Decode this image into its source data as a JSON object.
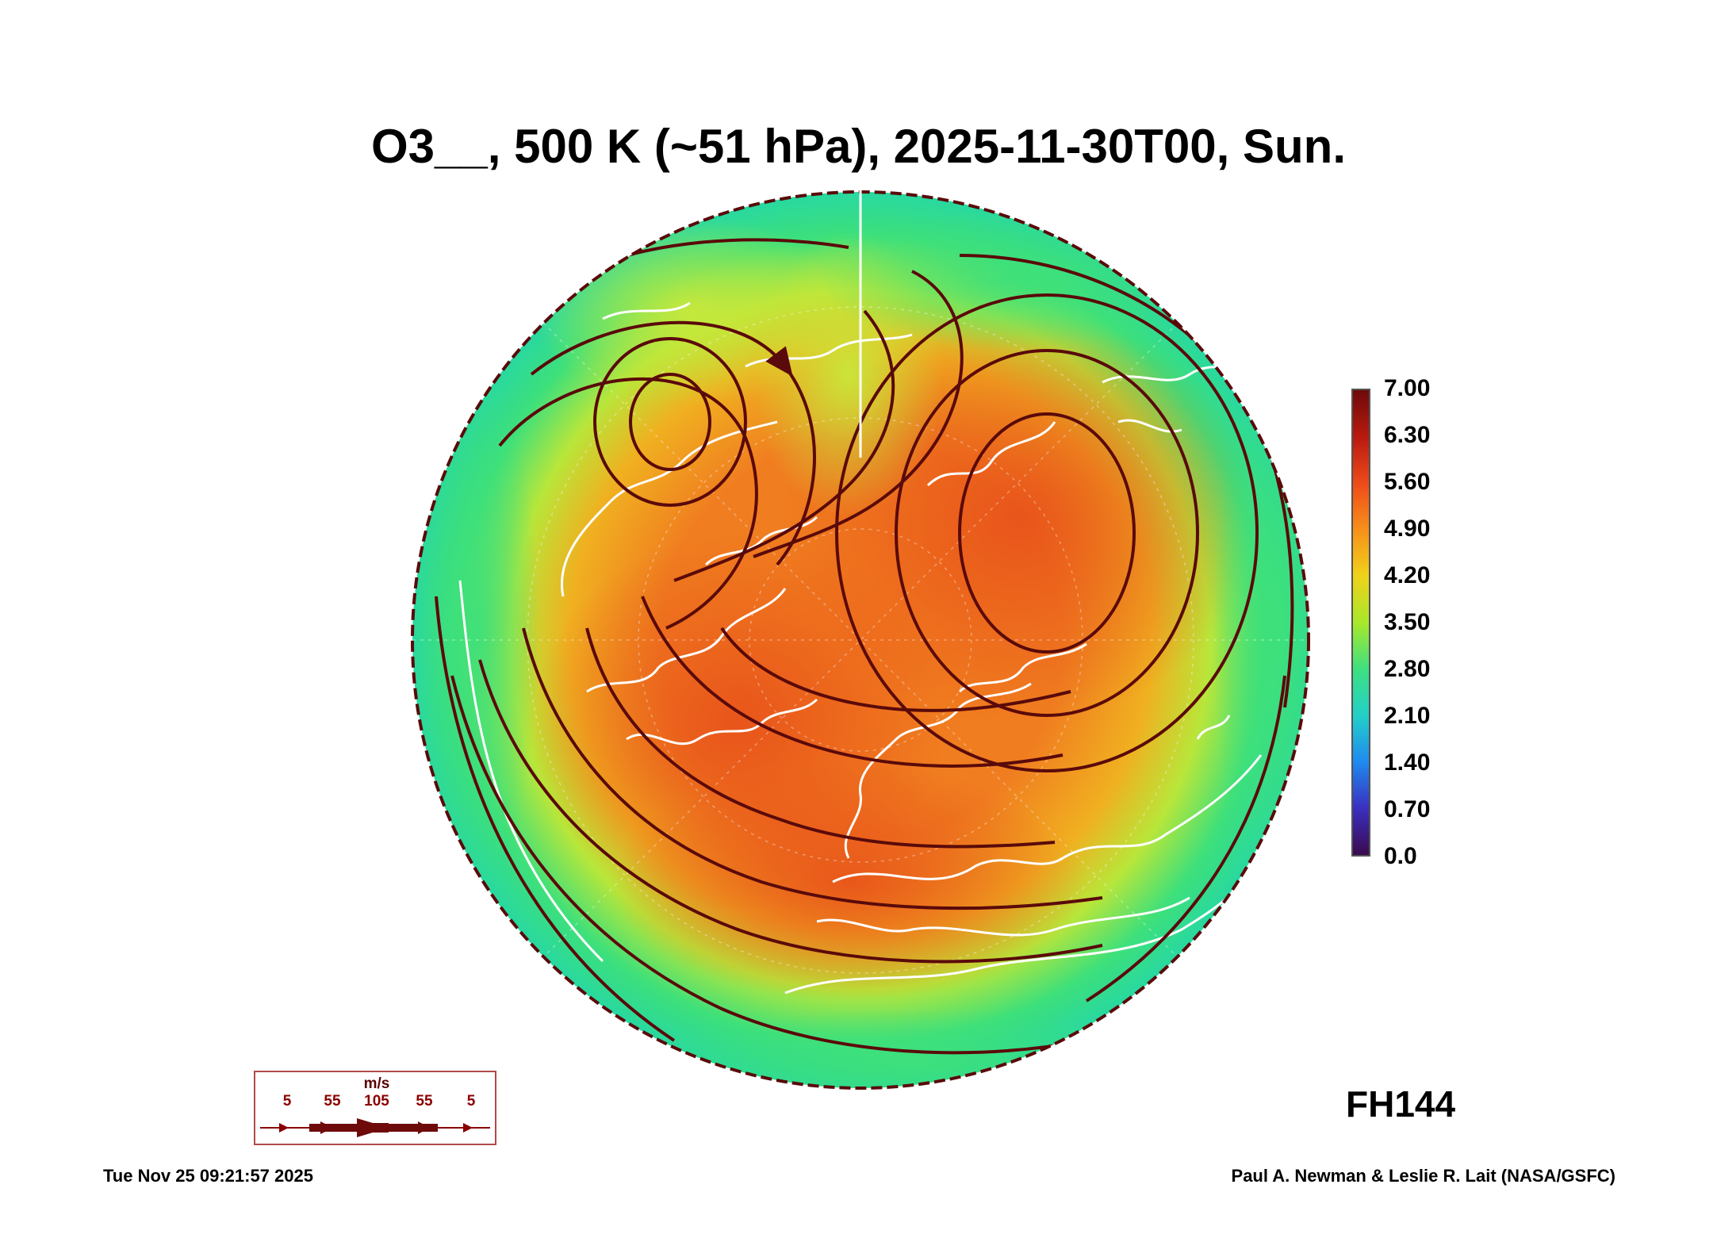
{
  "title": "O3__, 500 K (~51 hPa), 2025-11-30T00, Sun.",
  "forecast_hour": "FH144",
  "colorbar": {
    "labels": [
      "7.00",
      "6.30",
      "5.60",
      "4.90",
      "4.20",
      "3.50",
      "2.80",
      "2.10",
      "1.40",
      "0.70",
      "0.0"
    ],
    "min": 0.0,
    "max": 7.0,
    "colors": [
      "#3b0a4f",
      "#3a2fbf",
      "#1f8af0",
      "#22d0c8",
      "#3ee080",
      "#a8e82a",
      "#f0d21a",
      "#f7901a",
      "#ee4a1a",
      "#b8190f",
      "#6e0a0a"
    ]
  },
  "wind_legend": {
    "unit": "m/s",
    "speeds": [
      "5",
      "55",
      "105",
      "55",
      "5"
    ]
  },
  "footer": {
    "timestamp": "Tue Nov 25 09:21:57 2025",
    "credit": "Paul A. Newman & Leslie R. Lait (NASA/GSFC)"
  },
  "map": {
    "projection": "north polar stereographic",
    "field_colors": {
      "edge": "#2ee07a",
      "ring": "#b8e63a",
      "mid": "#f0c020",
      "high": "#f07a1e",
      "peak": "#e8501a"
    },
    "coastline_color": "#ffffff",
    "streamline_color": "#5a0a0a"
  }
}
